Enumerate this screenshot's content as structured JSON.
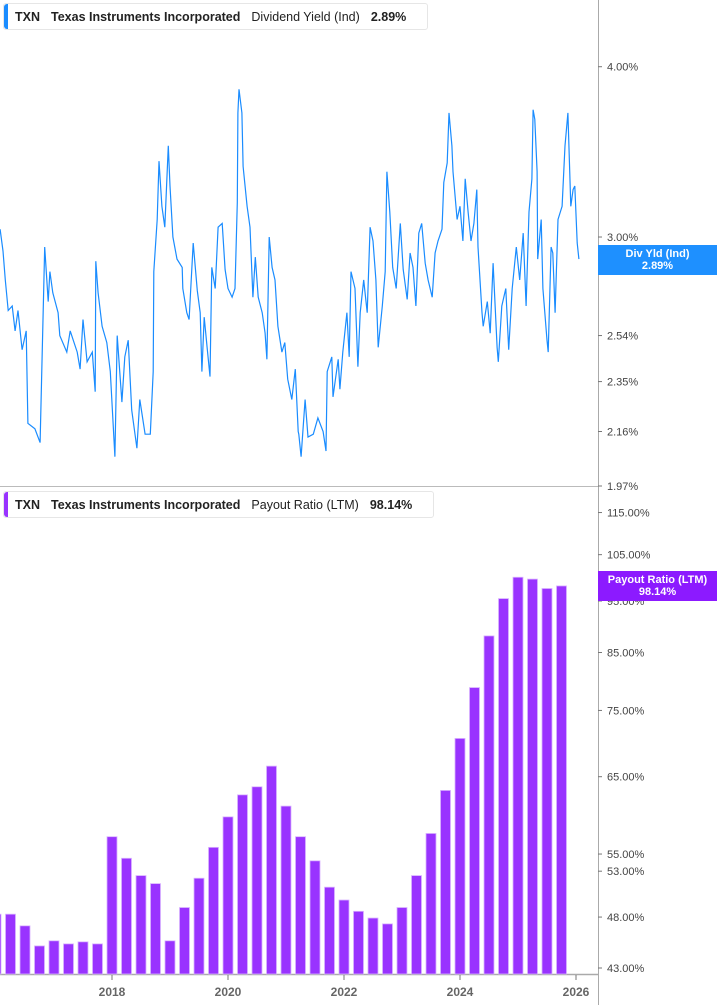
{
  "colors": {
    "yield_line": "#1a8cff",
    "payout_bar": "#9933ff",
    "yield_badge": "#1e90ff",
    "payout_badge": "#8c1aff"
  },
  "top_header": {
    "ticker": "TXN",
    "company": "Texas Instruments Incorporated",
    "metric": "Dividend Yield (Ind)",
    "value": "2.89%"
  },
  "bottom_header": {
    "ticker": "TXN",
    "company": "Texas Instruments Incorporated",
    "metric": "Payout Ratio (LTM)",
    "value": "98.14%"
  },
  "yield_badge": {
    "label": "Div Yld (Ind)",
    "value": "2.89%"
  },
  "payout_badge": {
    "label": "Payout Ratio (LTM)",
    "value": "98.14%"
  },
  "chart_data": [
    {
      "type": "line",
      "series": [
        {
          "name": "Dividend Yield (Ind)",
          "points": [
            [
              2016.07,
              3.04
            ],
            [
              2016.12,
              2.93
            ],
            [
              2016.16,
              2.79
            ],
            [
              2016.21,
              2.65
            ],
            [
              2016.28,
              2.67
            ],
            [
              2016.33,
              2.56
            ],
            [
              2016.38,
              2.65
            ],
            [
              2016.45,
              2.48
            ],
            [
              2016.52,
              2.56
            ],
            [
              2016.55,
              2.19
            ],
            [
              2016.67,
              2.17
            ],
            [
              2016.76,
              2.12
            ],
            [
              2016.84,
              2.95
            ],
            [
              2016.9,
              2.69
            ],
            [
              2016.93,
              2.83
            ],
            [
              2016.98,
              2.73
            ],
            [
              2017.07,
              2.64
            ],
            [
              2017.1,
              2.54
            ],
            [
              2017.22,
              2.47
            ],
            [
              2017.28,
              2.56
            ],
            [
              2017.4,
              2.47
            ],
            [
              2017.45,
              2.4
            ],
            [
              2017.5,
              2.61
            ],
            [
              2017.57,
              2.43
            ],
            [
              2017.66,
              2.47
            ],
            [
              2017.71,
              2.31
            ],
            [
              2017.72,
              2.88
            ],
            [
              2017.76,
              2.73
            ],
            [
              2017.83,
              2.58
            ],
            [
              2017.91,
              2.51
            ],
            [
              2017.97,
              2.39
            ],
            [
              2018.05,
              2.07
            ],
            [
              2018.09,
              2.54
            ],
            [
              2018.17,
              2.27
            ],
            [
              2018.22,
              2.45
            ],
            [
              2018.28,
              2.52
            ],
            [
              2018.34,
              2.24
            ],
            [
              2018.43,
              2.1
            ],
            [
              2018.48,
              2.28
            ],
            [
              2018.57,
              2.15
            ],
            [
              2018.66,
              2.15
            ],
            [
              2018.71,
              2.39
            ],
            [
              2018.72,
              2.83
            ],
            [
              2018.78,
              3.09
            ],
            [
              2018.81,
              3.41
            ],
            [
              2018.86,
              3.16
            ],
            [
              2018.91,
              3.05
            ],
            [
              2018.97,
              3.5
            ],
            [
              2019.0,
              3.27
            ],
            [
              2019.05,
              3.0
            ],
            [
              2019.12,
              2.89
            ],
            [
              2019.21,
              2.85
            ],
            [
              2019.22,
              2.75
            ],
            [
              2019.29,
              2.64
            ],
            [
              2019.33,
              2.61
            ],
            [
              2019.4,
              2.97
            ],
            [
              2019.47,
              2.74
            ],
            [
              2019.52,
              2.64
            ],
            [
              2019.55,
              2.39
            ],
            [
              2019.59,
              2.62
            ],
            [
              2019.64,
              2.49
            ],
            [
              2019.69,
              2.37
            ],
            [
              2019.72,
              2.85
            ],
            [
              2019.78,
              2.75
            ],
            [
              2019.83,
              3.05
            ],
            [
              2019.9,
              3.07
            ],
            [
              2019.95,
              2.84
            ],
            [
              2020.0,
              2.75
            ],
            [
              2020.07,
              2.71
            ],
            [
              2020.12,
              2.75
            ],
            [
              2020.16,
              3.18
            ],
            [
              2020.17,
              3.7
            ],
            [
              2020.19,
              3.85
            ],
            [
              2020.24,
              3.7
            ],
            [
              2020.26,
              3.38
            ],
            [
              2020.33,
              3.16
            ],
            [
              2020.38,
              3.05
            ],
            [
              2020.43,
              2.71
            ],
            [
              2020.47,
              2.9
            ],
            [
              2020.52,
              2.71
            ],
            [
              2020.59,
              2.64
            ],
            [
              2020.64,
              2.55
            ],
            [
              2020.67,
              2.44
            ],
            [
              2020.71,
              3.0
            ],
            [
              2020.76,
              2.85
            ],
            [
              2020.81,
              2.79
            ],
            [
              2020.86,
              2.58
            ],
            [
              2020.93,
              2.47
            ],
            [
              2020.98,
              2.51
            ],
            [
              2021.03,
              2.36
            ],
            [
              2021.1,
              2.28
            ],
            [
              2021.16,
              2.4
            ],
            [
              2021.21,
              2.16
            ],
            [
              2021.22,
              2.15
            ],
            [
              2021.26,
              2.07
            ],
            [
              2021.33,
              2.28
            ],
            [
              2021.38,
              2.14
            ],
            [
              2021.47,
              2.15
            ],
            [
              2021.55,
              2.21
            ],
            [
              2021.64,
              2.16
            ],
            [
              2021.69,
              2.09
            ],
            [
              2021.71,
              2.39
            ],
            [
              2021.79,
              2.45
            ],
            [
              2021.81,
              2.29
            ],
            [
              2021.9,
              2.44
            ],
            [
              2021.93,
              2.32
            ],
            [
              2021.98,
              2.47
            ],
            [
              2022.05,
              2.64
            ],
            [
              2022.09,
              2.45
            ],
            [
              2022.12,
              2.83
            ],
            [
              2022.19,
              2.75
            ],
            [
              2022.24,
              2.41
            ],
            [
              2022.28,
              2.64
            ],
            [
              2022.34,
              2.79
            ],
            [
              2022.4,
              2.64
            ],
            [
              2022.45,
              3.05
            ],
            [
              2022.5,
              2.98
            ],
            [
              2022.55,
              2.79
            ],
            [
              2022.59,
              2.49
            ],
            [
              2022.66,
              2.67
            ],
            [
              2022.71,
              2.83
            ],
            [
              2022.74,
              3.35
            ],
            [
              2022.79,
              3.13
            ],
            [
              2022.84,
              2.85
            ],
            [
              2022.9,
              2.75
            ],
            [
              2022.97,
              3.07
            ],
            [
              2023.02,
              2.84
            ],
            [
              2023.09,
              2.7
            ],
            [
              2023.14,
              2.92
            ],
            [
              2023.19,
              2.85
            ],
            [
              2023.24,
              2.67
            ],
            [
              2023.29,
              3.02
            ],
            [
              2023.34,
              3.07
            ],
            [
              2023.4,
              2.87
            ],
            [
              2023.45,
              2.79
            ],
            [
              2023.52,
              2.71
            ],
            [
              2023.57,
              2.92
            ],
            [
              2023.62,
              2.98
            ],
            [
              2023.69,
              3.04
            ],
            [
              2023.72,
              3.29
            ],
            [
              2023.78,
              3.4
            ],
            [
              2023.81,
              3.7
            ],
            [
              2023.86,
              3.5
            ],
            [
              2023.88,
              3.35
            ],
            [
              2023.95,
              3.09
            ],
            [
              2024.0,
              3.16
            ],
            [
              2024.05,
              2.98
            ],
            [
              2024.09,
              3.31
            ],
            [
              2024.14,
              3.13
            ],
            [
              2024.19,
              2.98
            ],
            [
              2024.24,
              3.07
            ],
            [
              2024.29,
              3.25
            ],
            [
              2024.31,
              2.95
            ],
            [
              2024.38,
              2.64
            ],
            [
              2024.4,
              2.58
            ],
            [
              2024.47,
              2.69
            ],
            [
              2024.52,
              2.55
            ],
            [
              2024.57,
              2.87
            ],
            [
              2024.64,
              2.49
            ],
            [
              2024.66,
              2.43
            ],
            [
              2024.72,
              2.67
            ],
            [
              2024.79,
              2.75
            ],
            [
              2024.84,
              2.48
            ],
            [
              2024.9,
              2.75
            ],
            [
              2024.97,
              2.95
            ],
            [
              2025.03,
              2.79
            ],
            [
              2025.09,
              3.02
            ],
            [
              2025.14,
              2.67
            ],
            [
              2025.19,
              3.13
            ],
            [
              2025.24,
              3.31
            ],
            [
              2025.26,
              3.72
            ],
            [
              2025.29,
              3.66
            ],
            [
              2025.33,
              3.35
            ],
            [
              2025.34,
              2.89
            ],
            [
              2025.4,
              3.09
            ],
            [
              2025.43,
              2.75
            ],
            [
              2025.5,
              2.52
            ],
            [
              2025.52,
              2.47
            ],
            [
              2025.57,
              2.95
            ],
            [
              2025.6,
              2.92
            ],
            [
              2025.64,
              2.64
            ],
            [
              2025.69,
              3.09
            ],
            [
              2025.76,
              3.16
            ],
            [
              2025.81,
              3.5
            ],
            [
              2025.86,
              3.7
            ],
            [
              2025.91,
              3.16
            ],
            [
              2025.95,
              3.25
            ],
            [
              2025.98,
              3.27
            ],
            [
              2026.02,
              2.97
            ],
            [
              2026.05,
              2.89
            ]
          ]
        }
      ],
      "y_scale": "log",
      "ylim": [
        1.97,
        4.3
      ],
      "y_ticks": [
        "4.00%",
        "3.00%",
        "2.54%",
        "2.35%",
        "2.16%",
        "1.97%"
      ],
      "y_tick_values": [
        4.0,
        3.0,
        2.54,
        2.35,
        2.16,
        1.97
      ],
      "y_axis_position": "right",
      "grid": false
    },
    {
      "type": "bar",
      "categories": [
        "2015-12",
        "2016-03",
        "2016-06",
        "2016-09",
        "2016-12",
        "2017-03",
        "2017-06",
        "2017-09",
        "2017-12",
        "2018-03",
        "2018-06",
        "2018-09",
        "2018-12",
        "2019-03",
        "2019-06",
        "2019-09",
        "2019-12",
        "2020-03",
        "2020-06",
        "2020-09",
        "2020-12",
        "2021-03",
        "2021-06",
        "2021-09",
        "2021-12",
        "2022-03",
        "2022-06",
        "2022-09",
        "2022-12",
        "2023-03",
        "2023-06",
        "2023-09",
        "2023-12",
        "2024-03",
        "2024-06",
        "2024-09",
        "2024-12",
        "2025-03",
        "2025-06",
        "2025-09"
      ],
      "series": [
        {
          "name": "Payout Ratio (LTM)",
          "values": [
            48.3,
            48.3,
            47.1,
            45.1,
            45.6,
            45.3,
            45.5,
            45.3,
            57.1,
            54.5,
            52.5,
            51.6,
            45.6,
            49.0,
            52.2,
            55.8,
            59.6,
            62.5,
            63.6,
            66.5,
            61.0,
            57.1,
            54.2,
            51.2,
            49.8,
            48.6,
            47.9,
            47.3,
            49.0,
            52.5,
            57.5,
            63.1,
            70.6,
            78.8,
            88.1,
            95.5,
            100.0,
            99.6,
            97.6,
            98.14
          ]
        }
      ],
      "y_scale": "log",
      "ylim": [
        43,
        118
      ],
      "y_ticks": [
        "115.00%",
        "105.00%",
        "95.00%",
        "85.00%",
        "75.00%",
        "65.00%",
        "55.00%",
        "53.00%",
        "48.00%",
        "43.00%"
      ],
      "y_tick_values": [
        115,
        105,
        95,
        85,
        75,
        65,
        55,
        53,
        48,
        43
      ],
      "x_ticks": [
        "2018",
        "2020",
        "2022",
        "2024",
        "2026"
      ],
      "y_axis_position": "right",
      "grid": false
    }
  ]
}
